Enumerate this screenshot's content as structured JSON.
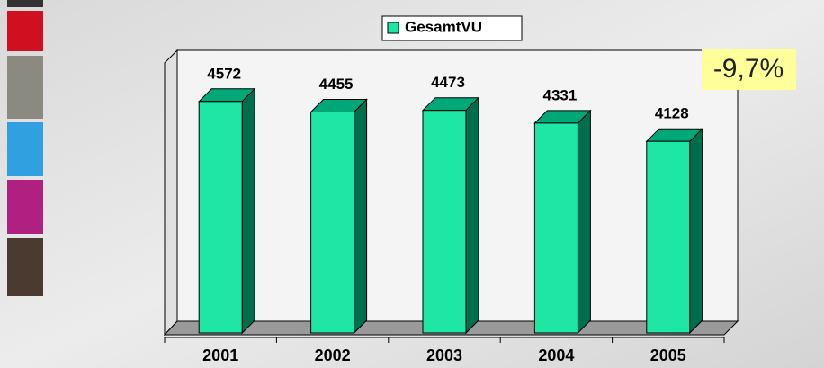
{
  "chart_data": {
    "type": "bar3d",
    "legend": "GesamtVU",
    "annotation": "-9,7%",
    "categories": [
      "2001",
      "2002",
      "2003",
      "2004",
      "2005"
    ],
    "series": [
      {
        "name": "GesamtVU",
        "color": "#1ee6a5",
        "values": [
          4572,
          4455,
          4473,
          4331,
          4128
        ]
      }
    ],
    "ylim": [
      2000,
      5000
    ]
  }
}
